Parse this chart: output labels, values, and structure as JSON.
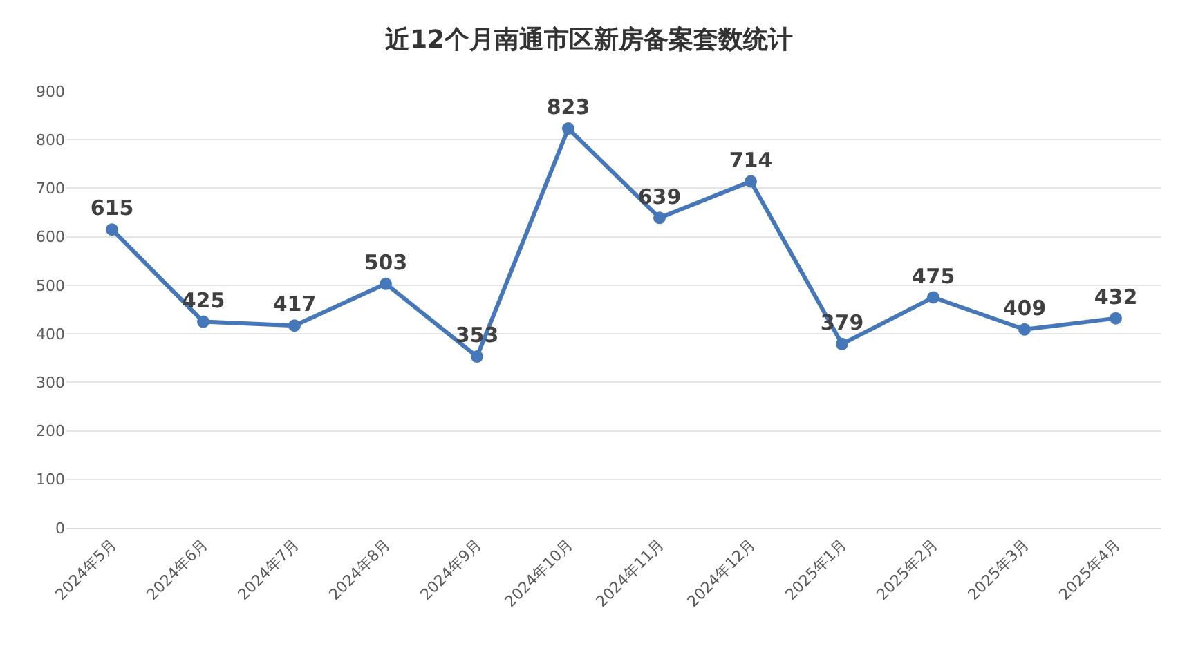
{
  "chart_data": {
    "type": "line",
    "title": "近12个月南通市区新房备案套数统计",
    "categories": [
      "2024年5月",
      "2024年6月",
      "2024年7月",
      "2024年8月",
      "2024年9月",
      "2024年10月",
      "2024年11月",
      "2024年12月",
      "2025年1月",
      "2025年2月",
      "2025年3月",
      "2025年4月"
    ],
    "series": [
      {
        "color": "#4677b8",
        "values": [
          615,
          425,
          417,
          503,
          353,
          823,
          639,
          714,
          379,
          475,
          409,
          432
        ]
      }
    ],
    "ylim": [
      0,
      900
    ],
    "yticks": [
      0,
      100,
      200,
      300,
      400,
      500,
      600,
      700,
      800,
      900
    ],
    "grid": "y",
    "marker": "circle",
    "line_style": "solid",
    "data_labels": true,
    "legend": false
  }
}
